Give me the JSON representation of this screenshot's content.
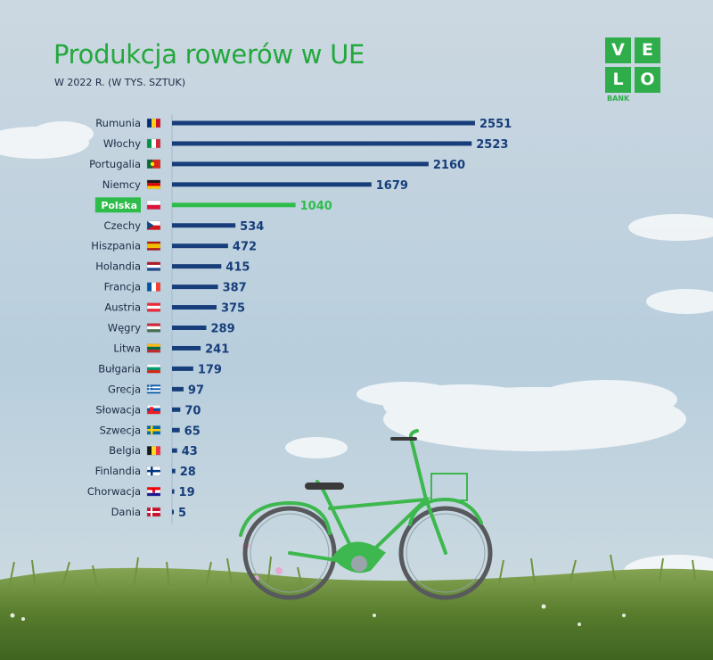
{
  "header": {
    "title": "Produkcja rowerów w UE",
    "subtitle": "W 2022 R. (W TYS. SZTUK)"
  },
  "logo": {
    "cells": [
      "V",
      "E",
      "L",
      "O"
    ],
    "caption": "BANK"
  },
  "colors": {
    "bar": "#173e7a",
    "highlight": "#2ebd4b",
    "value_text": "#173e7a",
    "label_text": "#1b2b45",
    "brand": "#2fad4a"
  },
  "chart_data": {
    "type": "bar",
    "orientation": "horizontal",
    "categories": [
      "Rumunia",
      "Włochy",
      "Portugalia",
      "Niemcy",
      "Polska",
      "Czechy",
      "Hiszpania",
      "Holandia",
      "Francja",
      "Austria",
      "Węgry",
      "Litwa",
      "Bułgaria",
      "Grecja",
      "Słowacja",
      "Szwecja",
      "Belgia",
      "Finlandia",
      "Chorwacja",
      "Dania"
    ],
    "values": [
      2551,
      2523,
      2160,
      1679,
      1040,
      534,
      472,
      415,
      387,
      375,
      289,
      241,
      179,
      97,
      70,
      65,
      43,
      28,
      19,
      5
    ],
    "value_labels": [
      "2551",
      "2523",
      "2160",
      "1679",
      "1040",
      "534",
      "472",
      "415",
      "387",
      "375",
      "289",
      "241",
      "179",
      "97",
      "70",
      "65",
      "43",
      "28",
      "19",
      "5"
    ],
    "highlight": "Polska",
    "flags": [
      "romania-flag-icon",
      "italy-flag-icon",
      "portugal-flag-icon",
      "germany-flag-icon",
      "poland-flag-icon",
      "czechia-flag-icon",
      "spain-flag-icon",
      "netherlands-flag-icon",
      "france-flag-icon",
      "austria-flag-icon",
      "hungary-flag-icon",
      "lithuania-flag-icon",
      "bulgaria-flag-icon",
      "greece-flag-icon",
      "slovakia-flag-icon",
      "sweden-flag-icon",
      "belgium-flag-icon",
      "finland-flag-icon",
      "croatia-flag-icon",
      "denmark-flag-icon"
    ],
    "xlim": [
      0,
      2551
    ],
    "grid": false,
    "legend": "none"
  }
}
